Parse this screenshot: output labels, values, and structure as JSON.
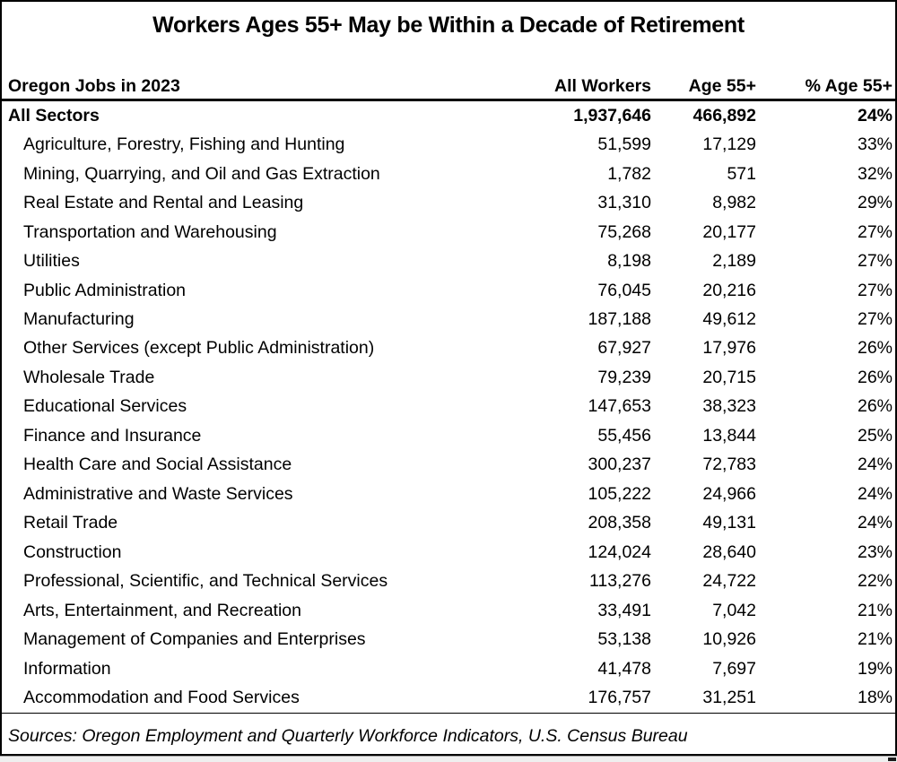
{
  "title": "Workers Ages 55+ May be Within a Decade of Retirement",
  "colors": {
    "text": "#000000",
    "background": "#ffffff",
    "border": "#000000",
    "sheet_edge": "#efefef"
  },
  "table": {
    "columns": {
      "sector": "Oregon Jobs in 2023",
      "all_workers": "All Workers",
      "age_55": "Age 55+",
      "pct_age_55": "% Age 55+"
    },
    "total_row": {
      "sector": "All Sectors",
      "all_workers": "1,937,646",
      "age_55": "466,892",
      "pct_age_55": "24%"
    },
    "rows": [
      {
        "sector": "Agriculture, Forestry, Fishing and Hunting",
        "all_workers": "51,599",
        "age_55": "17,129",
        "pct_age_55": "33%"
      },
      {
        "sector": "Mining, Quarrying, and Oil and Gas Extraction",
        "all_workers": "1,782",
        "age_55": "571",
        "pct_age_55": "32%"
      },
      {
        "sector": "Real Estate and Rental and Leasing",
        "all_workers": "31,310",
        "age_55": "8,982",
        "pct_age_55": "29%"
      },
      {
        "sector": "Transportation and Warehousing",
        "all_workers": "75,268",
        "age_55": "20,177",
        "pct_age_55": "27%"
      },
      {
        "sector": "Utilities",
        "all_workers": "8,198",
        "age_55": "2,189",
        "pct_age_55": "27%"
      },
      {
        "sector": "Public Administration",
        "all_workers": "76,045",
        "age_55": "20,216",
        "pct_age_55": "27%"
      },
      {
        "sector": "Manufacturing",
        "all_workers": "187,188",
        "age_55": "49,612",
        "pct_age_55": "27%"
      },
      {
        "sector": "Other Services (except Public Administration)",
        "all_workers": "67,927",
        "age_55": "17,976",
        "pct_age_55": "26%"
      },
      {
        "sector": "Wholesale Trade",
        "all_workers": "79,239",
        "age_55": "20,715",
        "pct_age_55": "26%"
      },
      {
        "sector": "Educational Services",
        "all_workers": "147,653",
        "age_55": "38,323",
        "pct_age_55": "26%"
      },
      {
        "sector": "Finance and Insurance",
        "all_workers": "55,456",
        "age_55": "13,844",
        "pct_age_55": "25%"
      },
      {
        "sector": "Health Care and Social Assistance",
        "all_workers": "300,237",
        "age_55": "72,783",
        "pct_age_55": "24%"
      },
      {
        "sector": "Administrative and Waste Services",
        "all_workers": "105,222",
        "age_55": "24,966",
        "pct_age_55": "24%"
      },
      {
        "sector": "Retail Trade",
        "all_workers": "208,358",
        "age_55": "49,131",
        "pct_age_55": "24%"
      },
      {
        "sector": "Construction",
        "all_workers": "124,024",
        "age_55": "28,640",
        "pct_age_55": "23%"
      },
      {
        "sector": "Professional, Scientific, and Technical Services",
        "all_workers": "113,276",
        "age_55": "24,722",
        "pct_age_55": "22%"
      },
      {
        "sector": "Arts, Entertainment, and Recreation",
        "all_workers": "33,491",
        "age_55": "7,042",
        "pct_age_55": "21%"
      },
      {
        "sector": "Management of Companies and Enterprises",
        "all_workers": "53,138",
        "age_55": "10,926",
        "pct_age_55": "21%"
      },
      {
        "sector": "Information",
        "all_workers": "41,478",
        "age_55": "7,697",
        "pct_age_55": "19%"
      },
      {
        "sector": "Accommodation and Food Services",
        "all_workers": "176,757",
        "age_55": "31,251",
        "pct_age_55": "18%"
      }
    ]
  },
  "footer": {
    "sources": "Sources: Oregon Employment and Quarterly Workforce Indicators, U.S. Census Bureau"
  },
  "chart_data": {
    "type": "table",
    "title": "Workers Ages 55+ May be Within a Decade of Retirement",
    "subtitle": "Oregon Jobs in 2023",
    "columns": [
      "Oregon Jobs in 2023",
      "All Workers",
      "Age 55+",
      "% Age 55+"
    ],
    "total": {
      "sector": "All Sectors",
      "all_workers": 1937646,
      "age_55": 466892,
      "pct_age_55": 24
    },
    "rows": [
      {
        "sector": "Agriculture, Forestry, Fishing and Hunting",
        "all_workers": 51599,
        "age_55": 17129,
        "pct_age_55": 33
      },
      {
        "sector": "Mining, Quarrying, and Oil and Gas Extraction",
        "all_workers": 1782,
        "age_55": 571,
        "pct_age_55": 32
      },
      {
        "sector": "Real Estate and Rental and Leasing",
        "all_workers": 31310,
        "age_55": 8982,
        "pct_age_55": 29
      },
      {
        "sector": "Transportation and Warehousing",
        "all_workers": 75268,
        "age_55": 20177,
        "pct_age_55": 27
      },
      {
        "sector": "Utilities",
        "all_workers": 8198,
        "age_55": 2189,
        "pct_age_55": 27
      },
      {
        "sector": "Public Administration",
        "all_workers": 76045,
        "age_55": 20216,
        "pct_age_55": 27
      },
      {
        "sector": "Manufacturing",
        "all_workers": 187188,
        "age_55": 49612,
        "pct_age_55": 27
      },
      {
        "sector": "Other Services (except Public Administration)",
        "all_workers": 67927,
        "age_55": 17976,
        "pct_age_55": 26
      },
      {
        "sector": "Wholesale Trade",
        "all_workers": 79239,
        "age_55": 20715,
        "pct_age_55": 26
      },
      {
        "sector": "Educational Services",
        "all_workers": 147653,
        "age_55": 38323,
        "pct_age_55": 26
      },
      {
        "sector": "Finance and Insurance",
        "all_workers": 55456,
        "age_55": 13844,
        "pct_age_55": 25
      },
      {
        "sector": "Health Care and Social Assistance",
        "all_workers": 300237,
        "age_55": 72783,
        "pct_age_55": 24
      },
      {
        "sector": "Administrative and Waste Services",
        "all_workers": 105222,
        "age_55": 24966,
        "pct_age_55": 24
      },
      {
        "sector": "Retail Trade",
        "all_workers": 208358,
        "age_55": 49131,
        "pct_age_55": 24
      },
      {
        "sector": "Construction",
        "all_workers": 124024,
        "age_55": 28640,
        "pct_age_55": 23
      },
      {
        "sector": "Professional, Scientific, and Technical Services",
        "all_workers": 113276,
        "age_55": 24722,
        "pct_age_55": 22
      },
      {
        "sector": "Arts, Entertainment, and Recreation",
        "all_workers": 33491,
        "age_55": 7042,
        "pct_age_55": 21
      },
      {
        "sector": "Management of Companies and Enterprises",
        "all_workers": 53138,
        "age_55": 10926,
        "pct_age_55": 21
      },
      {
        "sector": "Information",
        "all_workers": 41478,
        "age_55": 7697,
        "pct_age_55": 19
      },
      {
        "sector": "Accommodation and Food Services",
        "all_workers": 176757,
        "age_55": 31251,
        "pct_age_55": 18
      }
    ],
    "sources": "Sources: Oregon Employment and Quarterly Workforce Indicators, U.S. Census Bureau"
  }
}
